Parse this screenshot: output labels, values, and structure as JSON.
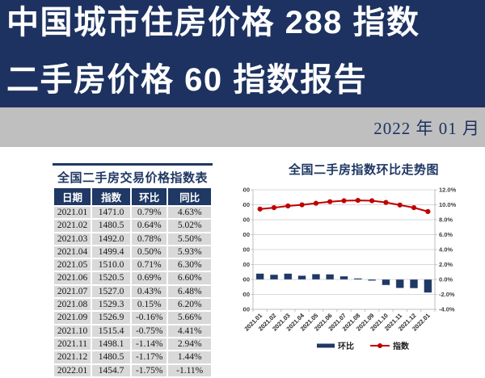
{
  "header": {
    "title_line1": "中国城市住房价格 288 指数",
    "title_line2": "二手房价格 60 指数报告",
    "date": "2022 年 01 月"
  },
  "table": {
    "title": "全国二手房交易价格指数表",
    "columns": [
      "日期",
      "指数",
      "环比",
      "同比"
    ],
    "rows": [
      [
        "2021.01",
        "1471.0",
        "0.79%",
        "4.63%"
      ],
      [
        "2021.02",
        "1480.5",
        "0.64%",
        "5.02%"
      ],
      [
        "2021.03",
        "1492.0",
        "0.78%",
        "5.50%"
      ],
      [
        "2021.04",
        "1499.4",
        "0.50%",
        "5.93%"
      ],
      [
        "2021.05",
        "1510.0",
        "0.71%",
        "6.30%"
      ],
      [
        "2021.06",
        "1520.5",
        "0.69%",
        "6.60%"
      ],
      [
        "2021.07",
        "1527.0",
        "0.43%",
        "6.48%"
      ],
      [
        "2021.08",
        "1529.3",
        "0.15%",
        "6.20%"
      ],
      [
        "2021.09",
        "1526.9",
        "-0.16%",
        "5.66%"
      ],
      [
        "2021.10",
        "1515.4",
        "-0.75%",
        "4.41%"
      ],
      [
        "2021.11",
        "1498.1",
        "-1.14%",
        "2.94%"
      ],
      [
        "2021.12",
        "1480.5",
        "-1.17%",
        "1.44%"
      ],
      [
        "2022.01",
        "1454.7",
        "-1.75%",
        "-1.11%"
      ]
    ]
  },
  "chart_data": {
    "type": "combo",
    "title": "全国二手房指数环比走势图",
    "categories": [
      "2021.01",
      "2021.02",
      "2021.03",
      "2021.04",
      "2021.05",
      "2021.06",
      "2021.07",
      "2021.08",
      "2021.09",
      "2021.10",
      "2021.11",
      "2021.12",
      "2022.01"
    ],
    "series": [
      {
        "name": "环比",
        "type": "bar",
        "axis": "right",
        "color": "#1f3864",
        "values": [
          0.79,
          0.64,
          0.78,
          0.5,
          0.71,
          0.69,
          0.43,
          0.15,
          -0.16,
          -0.75,
          -1.14,
          -1.17,
          -1.75
        ]
      },
      {
        "name": "指数",
        "type": "line",
        "axis": "left",
        "color": "#c00000",
        "values": [
          1471.0,
          1480.5,
          1492.0,
          1499.4,
          1510.0,
          1520.5,
          1527.0,
          1529.3,
          1526.9,
          1515.4,
          1498.1,
          1480.5,
          1454.7
        ]
      }
    ],
    "left_axis": {
      "min": 800,
      "max": 1600,
      "step": 100
    },
    "right_axis": {
      "min": -4.0,
      "max": 12.0,
      "step": 2.0,
      "suffix": "%"
    },
    "grid": true,
    "legend_position": "bottom"
  },
  "colors": {
    "banner_bg": "#1d3260",
    "band_bg": "#bfbfbf",
    "accent_navy": "#1f3864",
    "table_row_gray": "#d9d9d9",
    "bar_navy": "#1f3864",
    "line_red": "#c00000",
    "gridline": "#d9d9d9",
    "axis_line": "#bfbfbf"
  }
}
